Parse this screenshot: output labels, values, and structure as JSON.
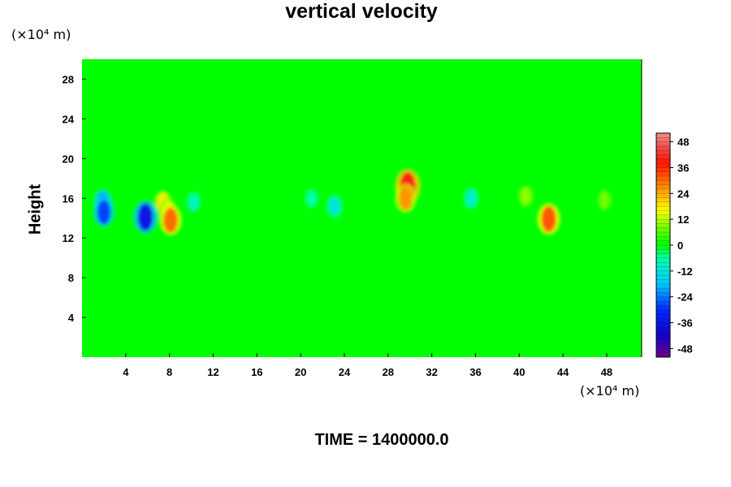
{
  "chart_data": {
    "type": "heatmap",
    "title": "vertical velocity",
    "x_unit": "(×10⁴ m)",
    "y_unit": "(×10⁴ m)",
    "ylabel": "Height",
    "xlabel": "",
    "xlim": [
      0,
      51.2
    ],
    "ylim": [
      0,
      30
    ],
    "x_ticks": [
      4,
      8,
      12,
      16,
      20,
      24,
      28,
      32,
      36,
      40,
      44,
      48
    ],
    "y_ticks": [
      4,
      8,
      12,
      16,
      20,
      24,
      28
    ],
    "colorbar": {
      "ticks": [
        48,
        36,
        24,
        12,
        0,
        -12,
        -24,
        -36,
        -48
      ],
      "range": [
        -52,
        52
      ]
    },
    "background_value": 0,
    "features": [
      {
        "x": 29.8,
        "y": 17.2,
        "value": 40
      },
      {
        "x": 29.6,
        "y": 16.0,
        "value": 26
      },
      {
        "x": 7.4,
        "y": 15.5,
        "value": 18
      },
      {
        "x": 7.9,
        "y": 14.8,
        "value": 14
      },
      {
        "x": 8.1,
        "y": 13.8,
        "value": 30
      },
      {
        "x": 42.7,
        "y": 13.9,
        "value": 32
      },
      {
        "x": 40.6,
        "y": 16.2,
        "value": 10
      },
      {
        "x": 47.8,
        "y": 15.8,
        "value": 8
      },
      {
        "x": 1.9,
        "y": 15.6,
        "value": -20
      },
      {
        "x": 2.0,
        "y": 14.6,
        "value": -28
      },
      {
        "x": 5.8,
        "y": 14.1,
        "value": -36
      },
      {
        "x": 23.1,
        "y": 15.2,
        "value": -12
      },
      {
        "x": 21.0,
        "y": 16.0,
        "value": -6
      },
      {
        "x": 35.6,
        "y": 16.0,
        "value": -10
      },
      {
        "x": 10.2,
        "y": 15.6,
        "value": -8
      }
    ]
  },
  "time_label": "TIME = 1400000.0"
}
